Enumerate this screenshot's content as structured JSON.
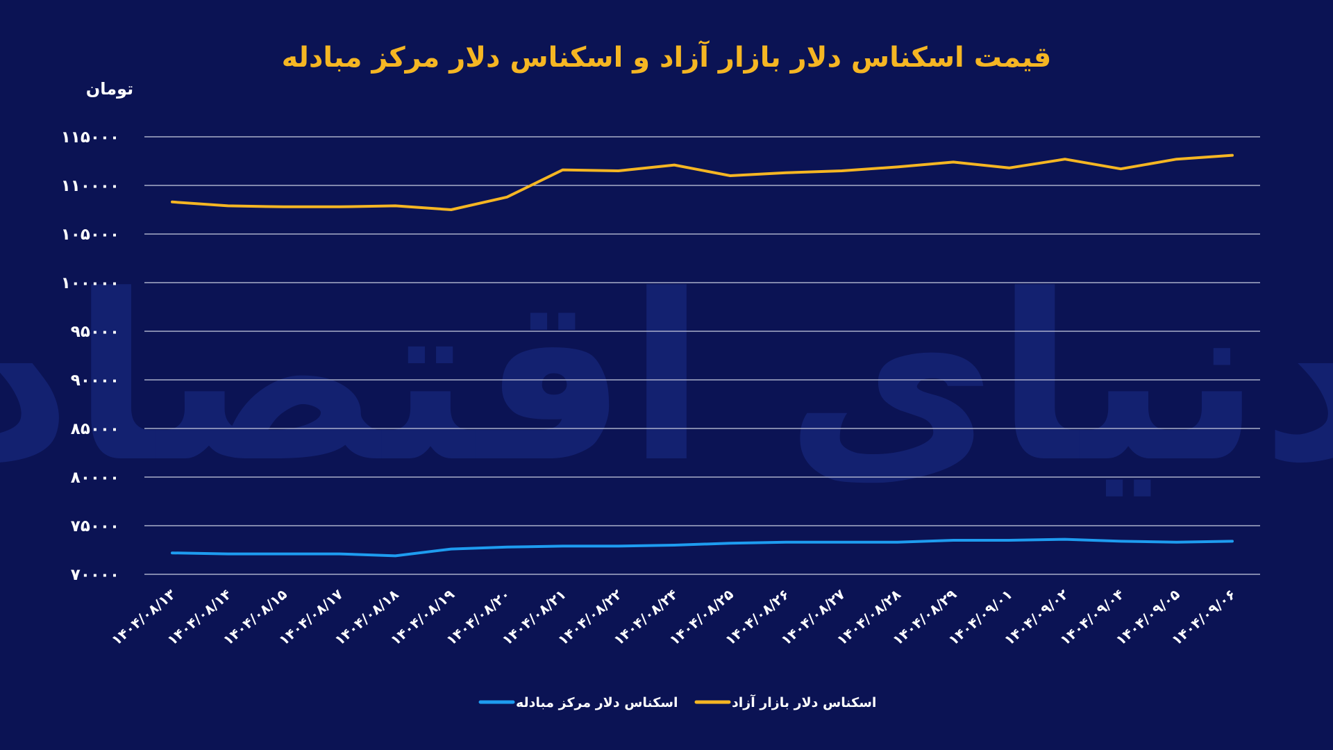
{
  "chart_data": {
    "type": "line",
    "title": "قیمت اسکناس دلار بازار آزاد و اسکناس دلار مرکز مبادله",
    "ylabel": "تومان",
    "xlabel": "",
    "ylim": [
      70000,
      115000
    ],
    "yticks": [
      70000,
      75000,
      80000,
      85000,
      90000,
      95000,
      100000,
      105000,
      110000,
      115000
    ],
    "ytick_labels": [
      "۷۰۰۰۰",
      "۷۵۰۰۰",
      "۸۰۰۰۰",
      "۸۵۰۰۰",
      "۹۰۰۰۰",
      "۹۵۰۰۰",
      "۱۰۰۰۰۰",
      "۱۰۵۰۰۰",
      "۱۱۰۰۰۰",
      "۱۱۵۰۰۰"
    ],
    "categories": [
      "۱۴۰۴/۰۸/۱۳",
      "۱۴۰۴/۰۸/۱۴",
      "۱۴۰۴/۰۸/۱۵",
      "۱۴۰۴/۰۸/۱۷",
      "۱۴۰۴/۰۸/۱۸",
      "۱۴۰۴/۰۸/۱۹",
      "۱۴۰۴/۰۸/۲۰",
      "۱۴۰۴/۰۸/۲۱",
      "۱۴۰۴/۰۸/۲۲",
      "۱۴۰۴/۰۸/۲۴",
      "۱۴۰۴/۰۸/۲۵",
      "۱۴۰۴/۰۸/۲۶",
      "۱۴۰۴/۰۸/۲۷",
      "۱۴۰۴/۰۸/۲۸",
      "۱۴۰۴/۰۸/۲۹",
      "۱۴۰۴/۰۹/۰۱",
      "۱۴۰۴/۰۹/۰۲",
      "۱۴۰۴/۰۹/۰۴",
      "۱۴۰۴/۰۹/۰۵",
      "۱۴۰۴/۰۹/۰۶"
    ],
    "series": [
      {
        "name": "اسکناس دلار بازار آزاد",
        "color": "#f5b623",
        "values": [
          108300,
          107900,
          107800,
          107800,
          107900,
          107500,
          108800,
          111600,
          111500,
          112100,
          111000,
          111300,
          111500,
          111900,
          112400,
          111800,
          112700,
          111700,
          112700,
          113100
        ]
      },
      {
        "name": "اسکناس دلار مرکز مبادله",
        "color": "#1e9cf0",
        "values": [
          72200,
          72100,
          72100,
          72100,
          71900,
          72600,
          72800,
          72900,
          72900,
          73000,
          73200,
          73300,
          73300,
          73300,
          73500,
          73500,
          73600,
          73400,
          73300,
          73400
        ]
      }
    ],
    "grid": true,
    "legend_position": "bottom-center",
    "watermark_text": "دنیای اقتصاد"
  }
}
